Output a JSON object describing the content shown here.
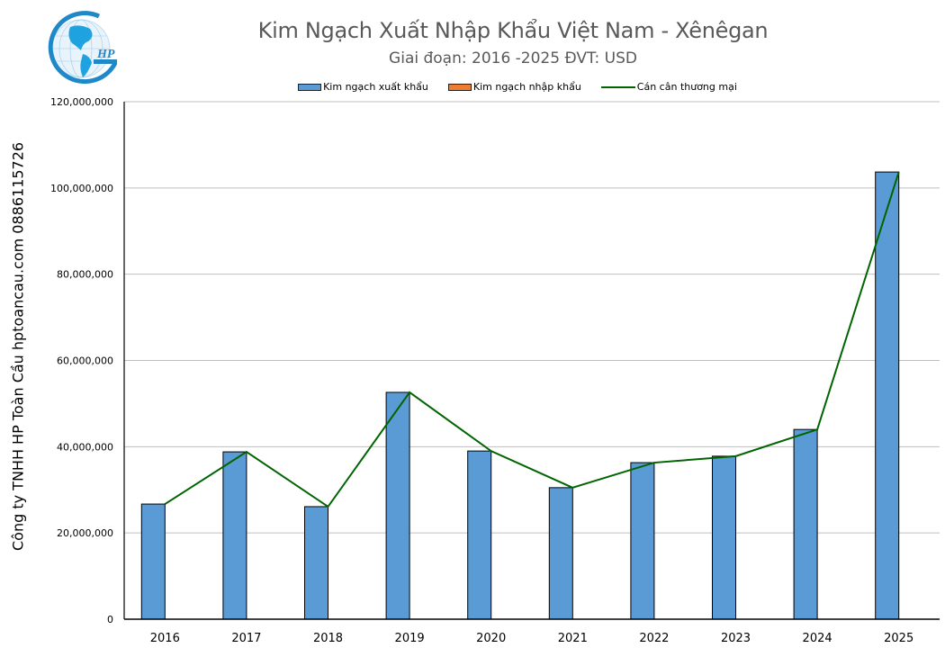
{
  "header": {
    "title": "Kim Ngạch Xuất Nhập Khẩu Việt Nam - Xênêgan",
    "subtitle": "Giai đoạn: 2016 -2025  ĐVT: USD",
    "logo_text": "HP"
  },
  "side_label": "Công ty TNHH HP Toàn Cầu hptoancau.com 0886115726",
  "legend": [
    {
      "label": "Kim ngạch xuất khẩu",
      "type": "bar",
      "color": "#5B9BD5"
    },
    {
      "label": "Kim ngạch nhập khẩu",
      "type": "bar",
      "color": "#ED7D31"
    },
    {
      "label": "Cán cân thương mại",
      "type": "line",
      "color": "#006400"
    }
  ],
  "colors": {
    "export": "#5B9BD5",
    "import": "#ED7D31",
    "balance": "#006400",
    "grid": "#BFBFBF",
    "axis": "#000000",
    "title": "#595959"
  },
  "chart_data": {
    "type": "bar",
    "title": "Kim Ngạch Xuất Nhập Khẩu Việt Nam - Xênêgan",
    "subtitle": "Giai đoạn: 2016 -2025  ĐVT: USD",
    "xlabel": "",
    "ylabel": "",
    "categories": [
      "2016",
      "2017",
      "2018",
      "2019",
      "2020",
      "2021",
      "2022",
      "2023",
      "2024",
      "2025"
    ],
    "series": [
      {
        "name": "Kim ngạch xuất khẩu",
        "type": "bar",
        "color": "#5B9BD5",
        "values": [
          26700000,
          38800000,
          26100000,
          52600000,
          39000000,
          30500000,
          36300000,
          37800000,
          44000000,
          103700000
        ]
      },
      {
        "name": "Kim ngạch nhập khẩu",
        "type": "bar",
        "color": "#ED7D31",
        "values": [
          0,
          0,
          0,
          0,
          0,
          0,
          0,
          0,
          0,
          0
        ]
      },
      {
        "name": "Cán cân thương mại",
        "type": "line",
        "color": "#006400",
        "values": [
          26700000,
          38800000,
          26100000,
          52600000,
          39000000,
          30500000,
          36300000,
          37800000,
          44000000,
          103700000
        ]
      }
    ],
    "yticks": [
      "0",
      "20,000,000",
      "40,000,000",
      "60,000,000",
      "80,000,000",
      "100,000,000",
      "120,000,000"
    ],
    "ylim": [
      0,
      120000000
    ],
    "grid": true,
    "legend_position": "top"
  }
}
